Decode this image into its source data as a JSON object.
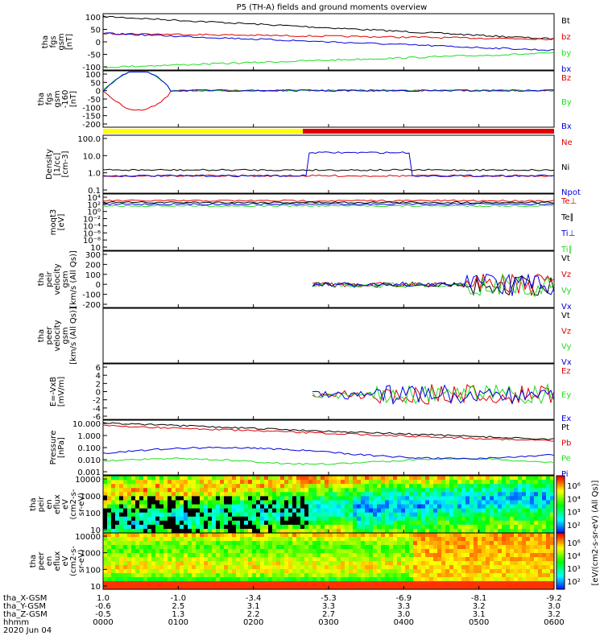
{
  "title": "P5 (TH-A) fields and ground moments overview",
  "colors": {
    "black": "#000000",
    "red": "#e00000",
    "green": "#22dd22",
    "blue": "#0000dd",
    "yellow": "#ffff00",
    "bar_red": "#e00000"
  },
  "chart_data": [
    {
      "id": "p1",
      "type": "line",
      "ylabel_lines": [
        "tha",
        "fgs",
        "gsm",
        "[nT]"
      ],
      "yticks": [
        "100",
        "50",
        "0",
        "-50",
        "-100"
      ],
      "ylim": [
        -100,
        100
      ],
      "legend": [
        {
          "name": "Bt",
          "color": "black"
        },
        {
          "name": "bz",
          "color": "red"
        },
        {
          "name": "by",
          "color": "green"
        },
        {
          "name": "bx",
          "color": "blue"
        }
      ]
    },
    {
      "id": "p2",
      "type": "line",
      "ylabel_lines": [
        "tha",
        "fgs",
        "gsm",
        "-160",
        "[nT]"
      ],
      "yticks": [
        "100",
        "50",
        "0",
        "-50",
        "-100",
        "-150",
        "-200"
      ],
      "ylim": [
        -210,
        100
      ],
      "legend": [
        {
          "name": "Bz",
          "color": "red"
        },
        {
          "name": "By",
          "color": "green"
        },
        {
          "name": "Bx",
          "color": "blue"
        }
      ]
    },
    {
      "id": "p3",
      "type": "line",
      "ylabel_lines": [
        "Density",
        "[1/cc]",
        "[cm-3]"
      ],
      "yticks": [
        "100.0",
        "10.0",
        "1.0",
        "0.1"
      ],
      "yscale": "log",
      "legend": [
        {
          "name": "Ne",
          "color": "red"
        },
        {
          "name": "Ni",
          "color": "black"
        },
        {
          "name": "Npot",
          "color": "blue"
        }
      ]
    },
    {
      "id": "p4",
      "type": "line",
      "ylabel_lines": [
        "moqt3",
        "[eV]"
      ],
      "yticks": [
        "10⁴",
        "10²",
        "10⁰",
        "10⁻²",
        "10⁻⁴",
        "10⁻⁶",
        "10⁻⁸",
        "10"
      ],
      "yscale": "log",
      "legend": [
        {
          "name": "Te⊥",
          "color": "red"
        },
        {
          "name": "Te∥",
          "color": "black"
        },
        {
          "name": "Ti⊥",
          "color": "blue"
        },
        {
          "name": "Ti∥",
          "color": "green"
        }
      ]
    },
    {
      "id": "p5",
      "type": "line",
      "ylabel_lines": [
        "tha",
        "peir",
        "velocity",
        "gsm",
        "[km/s (All Qs)]"
      ],
      "yticks": [
        "300",
        "200",
        "100",
        "0",
        "-100",
        "-200"
      ],
      "ylim": [
        -200,
        300
      ],
      "legend": [
        {
          "name": "Vt",
          "color": "black"
        },
        {
          "name": "Vz",
          "color": "red"
        },
        {
          "name": "Vy",
          "color": "green"
        },
        {
          "name": "Vx",
          "color": "blue"
        }
      ]
    },
    {
      "id": "p6",
      "type": "line",
      "ylabel_lines": [
        "tha",
        "peer",
        "velocity",
        "gsm",
        "[km/s (All Qs)]"
      ],
      "yticks": [],
      "legend": [
        {
          "name": "Vt",
          "color": "black"
        },
        {
          "name": "Vz",
          "color": "red"
        },
        {
          "name": "Vy",
          "color": "green"
        },
        {
          "name": "Vx",
          "color": "blue"
        }
      ]
    },
    {
      "id": "p7",
      "type": "line",
      "ylabel_lines": [
        "E=-VxB",
        "[mV/m]"
      ],
      "yticks": [
        "6",
        "4",
        "2",
        "0",
        "-2",
        "-4",
        "-6"
      ],
      "ylim": [
        -6,
        6
      ],
      "legend": [
        {
          "name": "Ez",
          "color": "red"
        },
        {
          "name": "Ey",
          "color": "green"
        },
        {
          "name": "Ex",
          "color": "blue"
        }
      ]
    },
    {
      "id": "p8",
      "type": "line",
      "ylabel_lines": [
        "Pressure",
        "[nPa]"
      ],
      "yticks": [
        "10.000",
        "1.000",
        "0.100",
        "0.010",
        "0.001"
      ],
      "yscale": "log",
      "legend": [
        {
          "name": "Pt",
          "color": "black"
        },
        {
          "name": "Pb",
          "color": "red"
        },
        {
          "name": "Pe",
          "color": "green"
        },
        {
          "name": "Pi",
          "color": "blue"
        }
      ]
    },
    {
      "id": "p9",
      "type": "heatmap",
      "ylabel_lines": [
        "tha",
        "peir",
        "en",
        "eflux",
        "eV",
        "(cm2-s-",
        "sr-eV)"
      ],
      "yticks": [
        "10000",
        "1000",
        "100",
        "10"
      ],
      "yscale": "log",
      "colorbar_label": "[eV/(cm2-s-sr-eV) (All Qs)]",
      "colorbar_ticks": [
        "10⁶",
        "10⁴",
        "10³",
        "10²"
      ]
    },
    {
      "id": "p10",
      "type": "heatmap",
      "ylabel_lines": [
        "tha",
        "peer",
        "en",
        "eflux",
        "eV",
        "(cm2-s-",
        "sr-eV)"
      ],
      "yticks": [
        "10000",
        "1000",
        "100",
        "10"
      ],
      "yscale": "log",
      "colorbar_label": "[eV/(cm2-s-sr-eV) (All Qs)]",
      "colorbar_ticks": [
        "10⁶",
        "10⁴",
        "10³",
        "10²"
      ]
    }
  ],
  "xaxis": {
    "rows": [
      {
        "label": "tha_X-GSM",
        "values": [
          "1.0",
          "-1.0",
          "-3.4",
          "-5.3",
          "-6.9",
          "-8.1",
          "-9.2"
        ]
      },
      {
        "label": "tha_Y-GSM",
        "values": [
          "-0.6",
          "2.5",
          "3.1",
          "3.3",
          "3.3",
          "3.2",
          "3.0"
        ]
      },
      {
        "label": "tha_Z-GSM",
        "values": [
          "-0.5",
          "1.3",
          "2.2",
          "2.7",
          "3.0",
          "3.1",
          "3.2"
        ]
      },
      {
        "label": "hhmm",
        "values": [
          "0000",
          "0100",
          "0200",
          "0300",
          "0400",
          "0500",
          "0600"
        ]
      }
    ],
    "date": "2020 Jun 04"
  }
}
